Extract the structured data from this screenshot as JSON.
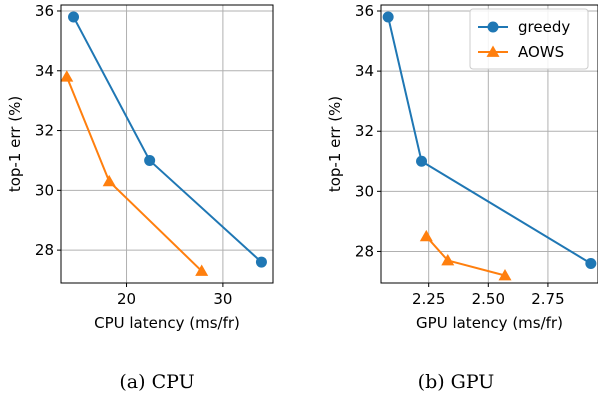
{
  "figure": {
    "captions": [
      "(a) CPU",
      "(b) GPU"
    ]
  },
  "chart_data": [
    {
      "type": "line",
      "title": "",
      "xlabel": "CPU latency (ms/fr)",
      "ylabel": "top-1 err (%)",
      "xlim": [
        13.2,
        35.2
      ],
      "ylim": [
        26.9,
        36.2
      ],
      "xticks": [
        20,
        30
      ],
      "yticks": [
        28,
        30,
        32,
        34,
        36
      ],
      "grid": true,
      "legend": null,
      "series": [
        {
          "name": "greedy",
          "color": "#1f77b4",
          "marker": "circle",
          "x": [
            14.5,
            22.4,
            34.0
          ],
          "y": [
            35.8,
            31.0,
            27.6
          ]
        },
        {
          "name": "AOWS",
          "color": "#ff7f0e",
          "marker": "triangle",
          "x": [
            13.8,
            18.2,
            27.8
          ],
          "y": [
            33.8,
            30.3,
            27.3
          ]
        }
      ]
    },
    {
      "type": "line",
      "title": "",
      "xlabel": "GPU latency (ms/fr)",
      "ylabel": "top-1 err (%)",
      "xlim": [
        2.05,
        2.96
      ],
      "ylim": [
        26.95,
        36.2
      ],
      "xticks": [
        2.25,
        2.5,
        2.75
      ],
      "xtick_labels": [
        "2.25",
        "2.50",
        "2.75"
      ],
      "yticks": [
        28,
        30,
        32,
        34,
        36
      ],
      "grid": true,
      "legend": "upper-right",
      "series": [
        {
          "name": "greedy",
          "color": "#1f77b4",
          "marker": "circle",
          "x": [
            2.08,
            2.22,
            2.93
          ],
          "y": [
            35.8,
            31.0,
            27.6
          ]
        },
        {
          "name": "AOWS",
          "color": "#ff7f0e",
          "marker": "triangle",
          "x": [
            2.24,
            2.33,
            2.57
          ],
          "y": [
            28.5,
            27.7,
            27.2
          ]
        }
      ]
    }
  ]
}
